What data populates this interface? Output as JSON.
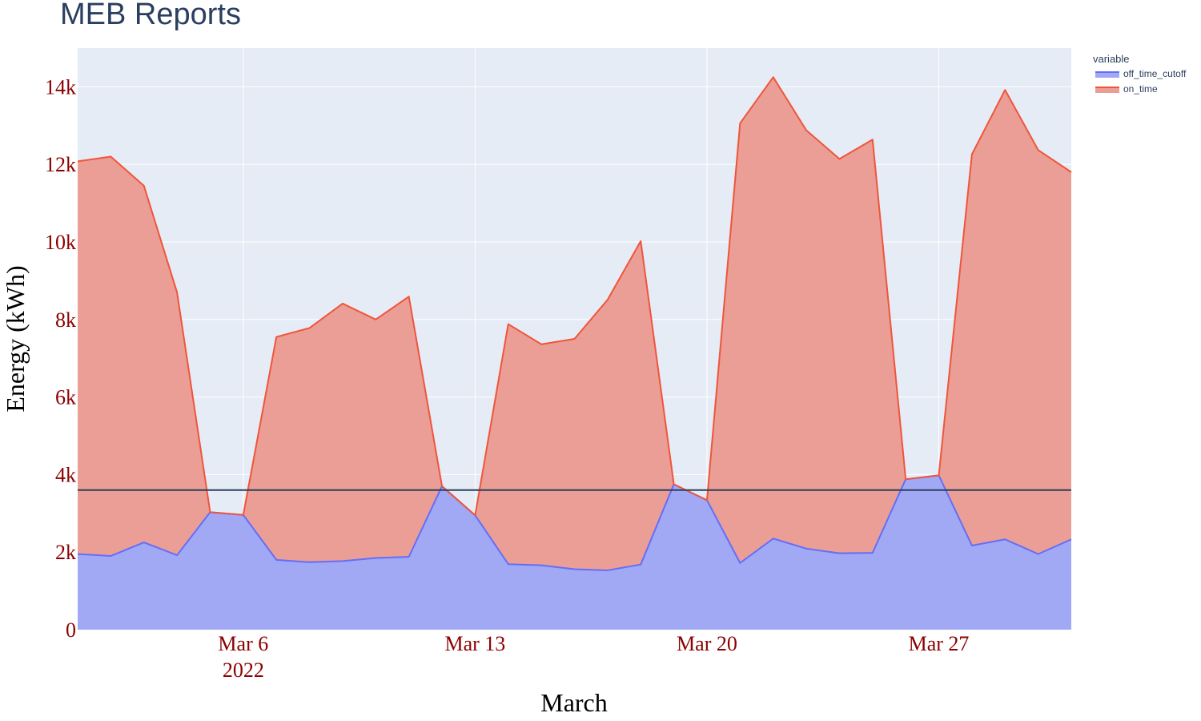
{
  "chart_data": {
    "type": "area",
    "title": "MEB Reports",
    "xlabel": "March",
    "ylabel": "Energy (kWh)",
    "x_start": "2022-03-01",
    "x_end": "2022-03-31",
    "x_ticks": [
      {
        "date": "2022-03-06",
        "label": "Mar 6",
        "sublabel": "2022"
      },
      {
        "date": "2022-03-13",
        "label": "Mar 13",
        "sublabel": ""
      },
      {
        "date": "2022-03-20",
        "label": "Mar 20",
        "sublabel": ""
      },
      {
        "date": "2022-03-27",
        "label": "Mar 27",
        "sublabel": ""
      }
    ],
    "ylim": [
      0,
      15000
    ],
    "y_ticks": [
      {
        "value": 0,
        "label": "0"
      },
      {
        "value": 2000,
        "label": "2k"
      },
      {
        "value": 4000,
        "label": "4k"
      },
      {
        "value": 6000,
        "label": "6k"
      },
      {
        "value": 8000,
        "label": "8k"
      },
      {
        "value": 10000,
        "label": "10k"
      },
      {
        "value": 12000,
        "label": "12k"
      },
      {
        "value": 14000,
        "label": "14k"
      }
    ],
    "stacked": true,
    "grid": true,
    "legend_title": "variable",
    "legend_position": "top-right",
    "x": [
      "2022-03-01",
      "2022-03-02",
      "2022-03-03",
      "2022-03-04",
      "2022-03-05",
      "2022-03-06",
      "2022-03-07",
      "2022-03-08",
      "2022-03-09",
      "2022-03-10",
      "2022-03-11",
      "2022-03-12",
      "2022-03-13",
      "2022-03-14",
      "2022-03-15",
      "2022-03-16",
      "2022-03-17",
      "2022-03-18",
      "2022-03-19",
      "2022-03-20",
      "2022-03-21",
      "2022-03-22",
      "2022-03-23",
      "2022-03-24",
      "2022-03-25",
      "2022-03-26",
      "2022-03-27",
      "2022-03-28",
      "2022-03-29",
      "2022-03-30",
      "2022-03-31"
    ],
    "series": [
      {
        "name": "off_time_cutoff",
        "color": "#636efa",
        "fill": "#a1a9f5",
        "values": [
          1950,
          1900,
          2250,
          1920,
          3030,
          2960,
          1800,
          1740,
          1770,
          1850,
          1880,
          3700,
          2950,
          1690,
          1660,
          1560,
          1530,
          1680,
          3750,
          3340,
          1720,
          2350,
          2090,
          1970,
          1980,
          3880,
          3980,
          2170,
          2330,
          1950,
          2330
        ]
      },
      {
        "name": "on_time",
        "color": "#ef553b",
        "fill": "#eb9e95",
        "total_values": [
          12080,
          12200,
          11450,
          8700,
          3030,
          2960,
          7550,
          7780,
          8410,
          8000,
          8590,
          3700,
          2950,
          7880,
          7360,
          7500,
          8510,
          10020,
          3750,
          3340,
          13060,
          14250,
          12880,
          12140,
          12640,
          3880,
          3980,
          12260,
          13920,
          12370,
          11800
        ]
      }
    ],
    "reference_line": {
      "value": 3600,
      "color": "#2a3f5f"
    }
  }
}
